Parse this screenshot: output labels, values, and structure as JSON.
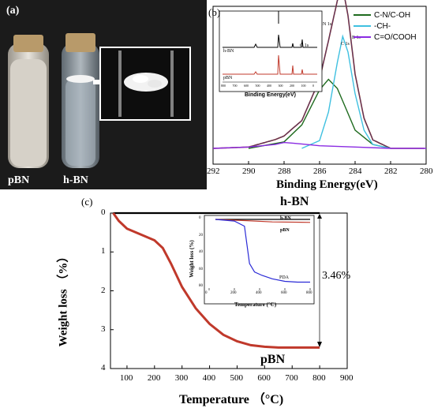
{
  "figure": {
    "panel_a": {
      "label": "(a)",
      "vial_left_label": "pBN",
      "vial_right_label": "h-BN",
      "colors": {
        "background": "#1b1b1b",
        "pbn_liquid": "#d4cfc6",
        "cork": "#b89a6a"
      }
    },
    "panel_b": {
      "label": "(b)",
      "legend": [
        "C-N/C-OH",
        "-CH-",
        "C=O/COOH"
      ],
      "legend_colors": [
        "#1f6b1f",
        "#3fc0e0",
        "#8a2be2"
      ],
      "xlabel": "Binding Energy(eV)",
      "xticks": [
        "292",
        "290",
        "288",
        "286",
        "284",
        "282",
        "280"
      ],
      "inset": {
        "xlabel": "Binding Energy(eV)",
        "peak_labels": [
          "N 1s",
          "O 1s",
          "C 1s",
          "B 1s"
        ],
        "series_labels": [
          "h-BN",
          "pBN"
        ],
        "xticks": [
          "800",
          "700",
          "600",
          "500",
          "400",
          "300",
          "200",
          "100",
          "0"
        ]
      }
    },
    "panel_c": {
      "label": "(c)",
      "xlabel": "Temperature （°C)",
      "ylabel": "Weight loss （%）",
      "xticks": [
        "100",
        "200",
        "300",
        "400",
        "500",
        "600",
        "700",
        "800",
        "900"
      ],
      "yticks": [
        "0",
        "1",
        "2",
        "3",
        "4"
      ],
      "hbn_label": "h-BN",
      "pbn_label": "pBN",
      "delta_label": "3.46%",
      "inset": {
        "xlabel": "Temperature (°C)",
        "ylabel": "Weight loss (%)",
        "series_labels": [
          "h-BN",
          "pBN",
          "PDA"
        ],
        "xticks": [
          "0",
          "200",
          "400",
          "600",
          "800"
        ],
        "yticks": [
          "0",
          "20",
          "40",
          "60",
          "80"
        ]
      }
    }
  },
  "chart_data": [
    {
      "type": "line",
      "panel": "b",
      "xlabel": "Binding Energy(eV)",
      "xlim": [
        292,
        280
      ],
      "series": [
        {
          "name": "C-N/C-OH",
          "color": "#1f6b1f",
          "x": [
            290,
            288,
            287,
            286,
            285.5,
            285,
            284.5,
            284,
            283,
            282
          ],
          "y": [
            0.0,
            0.05,
            0.18,
            0.45,
            0.53,
            0.46,
            0.3,
            0.14,
            0.03,
            0.0
          ]
        },
        {
          "name": "-CH-",
          "color": "#3fc0e0",
          "x": [
            287,
            286,
            285.5,
            285,
            284.7,
            284.4,
            284,
            283.5,
            283,
            282
          ],
          "y": [
            0.0,
            0.06,
            0.28,
            0.66,
            0.86,
            0.74,
            0.42,
            0.14,
            0.03,
            0.0
          ]
        },
        {
          "name": "C=O/COOH",
          "color": "#8a2be2",
          "x": [
            292,
            290,
            288.5,
            288,
            287.5,
            286,
            284,
            282,
            280
          ],
          "y": [
            0.0,
            0.01,
            0.03,
            0.045,
            0.04,
            0.02,
            0.01,
            0.0,
            0.0
          ]
        }
      ]
    },
    {
      "type": "line",
      "panel": "c",
      "xlabel": "Temperature （°C)",
      "ylabel": "Weight loss （%）",
      "xlim": [
        40,
        900
      ],
      "ylim": [
        0,
        4
      ],
      "series": [
        {
          "name": "h-BN",
          "color": "#000000",
          "x": [
            50,
            200,
            400,
            600,
            800
          ],
          "y": [
            0.0,
            0.0,
            0.0,
            0.0,
            0.0
          ]
        },
        {
          "name": "pBN",
          "color": "#c0392b",
          "x": [
            50,
            70,
            100,
            150,
            200,
            230,
            260,
            300,
            350,
            400,
            450,
            500,
            550,
            600,
            650,
            700,
            800
          ],
          "y": [
            0.0,
            0.2,
            0.4,
            0.55,
            0.7,
            0.9,
            1.3,
            1.9,
            2.45,
            2.85,
            3.13,
            3.3,
            3.4,
            3.44,
            3.46,
            3.46,
            3.46
          ]
        }
      ]
    },
    {
      "type": "line",
      "panel": "c-inset",
      "xlabel": "Temperature (°C)",
      "ylabel": "Weight loss (%)",
      "xlim": [
        0,
        800
      ],
      "ylim": [
        0,
        80
      ],
      "series": [
        {
          "name": "h-BN",
          "color": "#000000",
          "x": [
            50,
            800
          ],
          "y": [
            0,
            0
          ]
        },
        {
          "name": "pBN",
          "color": "#c0392b",
          "x": [
            50,
            300,
            500,
            800
          ],
          "y": [
            0,
            1.5,
            3,
            3.5
          ]
        },
        {
          "name": "PDA",
          "color": "#2a2ad6",
          "x": [
            50,
            200,
            280,
            300,
            320,
            360,
            420,
            500,
            600,
            700,
            800
          ],
          "y": [
            0,
            2,
            8,
            30,
            52,
            62,
            66,
            70,
            73,
            74,
            74
          ]
        }
      ]
    }
  ]
}
